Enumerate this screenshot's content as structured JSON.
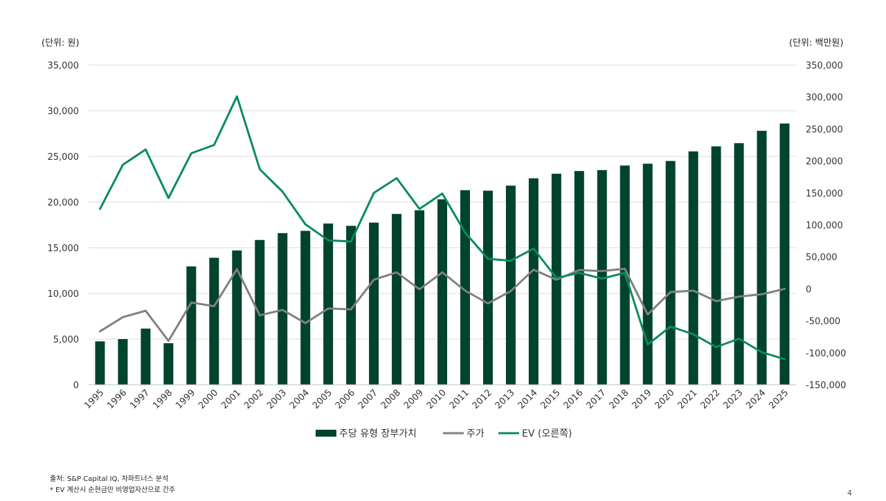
{
  "page": {
    "left_unit": "(단위: 원)",
    "right_unit": "(단위: 백만원)",
    "source": "출처: S&P Capital IQ, 차파트너스 분석",
    "note": "* EV 계산시 순현금만 비영업자산으로 간주",
    "page_number": "4"
  },
  "chart_data": {
    "type": "bar",
    "categories": [
      "1995",
      "1996",
      "1997",
      "1998",
      "1999",
      "2000",
      "2001",
      "2002",
      "2003",
      "2004",
      "2005",
      "2006",
      "2007",
      "2008",
      "2009",
      "2010",
      "2011",
      "2012",
      "2013",
      "2014",
      "2015",
      "2016",
      "2017",
      "2018",
      "2019",
      "2020",
      "2021",
      "2022",
      "2023",
      "2024",
      "2025"
    ],
    "series": [
      {
        "name": "주당 유형 장부가치",
        "kind": "bar",
        "axis": "left",
        "color": "#00432E",
        "values": [
          4750,
          5000,
          6150,
          4550,
          12950,
          13900,
          14700,
          15850,
          16600,
          16850,
          17650,
          17400,
          17750,
          18700,
          19100,
          20300,
          21300,
          21250,
          21800,
          22600,
          23100,
          23400,
          23500,
          24000,
          24200,
          24500,
          25550,
          26100,
          26450,
          27800,
          28600
        ]
      },
      {
        "name": "주가",
        "kind": "line",
        "axis": "left",
        "color": "#808080",
        "values": [
          5850,
          7400,
          8100,
          4800,
          9000,
          8600,
          12650,
          7600,
          8200,
          6750,
          8350,
          8250,
          11500,
          12300,
          10450,
          12300,
          10300,
          8900,
          10250,
          12600,
          11500,
          12550,
          12450,
          12700,
          7700,
          10150,
          10300,
          9150,
          9650,
          9900,
          10500
        ]
      },
      {
        "name": "EV (오른쪽)",
        "kind": "line",
        "axis": "right",
        "color": "#0A8A63",
        "values": [
          125000,
          194000,
          218000,
          142000,
          212000,
          225000,
          301000,
          187000,
          152000,
          101000,
          76000,
          74000,
          150000,
          173000,
          125000,
          149000,
          88000,
          47000,
          44000,
          63000,
          17000,
          25000,
          16000,
          25000,
          -87000,
          -59000,
          -71000,
          -91000,
          -78000,
          -99000,
          -110000
        ]
      }
    ],
    "y_left": {
      "range": [
        0,
        35000
      ],
      "ticks": [
        "0",
        "5,000",
        "10,000",
        "15,000",
        "20,000",
        "25,000",
        "30,000",
        "35,000"
      ]
    },
    "y_right": {
      "range": [
        -150000,
        350000
      ],
      "ticks": [
        "-150,000",
        "-100,000",
        "-50,000",
        "0",
        "50,000",
        "100,000",
        "150,000",
        "200,000",
        "250,000",
        "300,000",
        "350,000"
      ]
    },
    "grid": true,
    "legend_position": "bottom"
  }
}
